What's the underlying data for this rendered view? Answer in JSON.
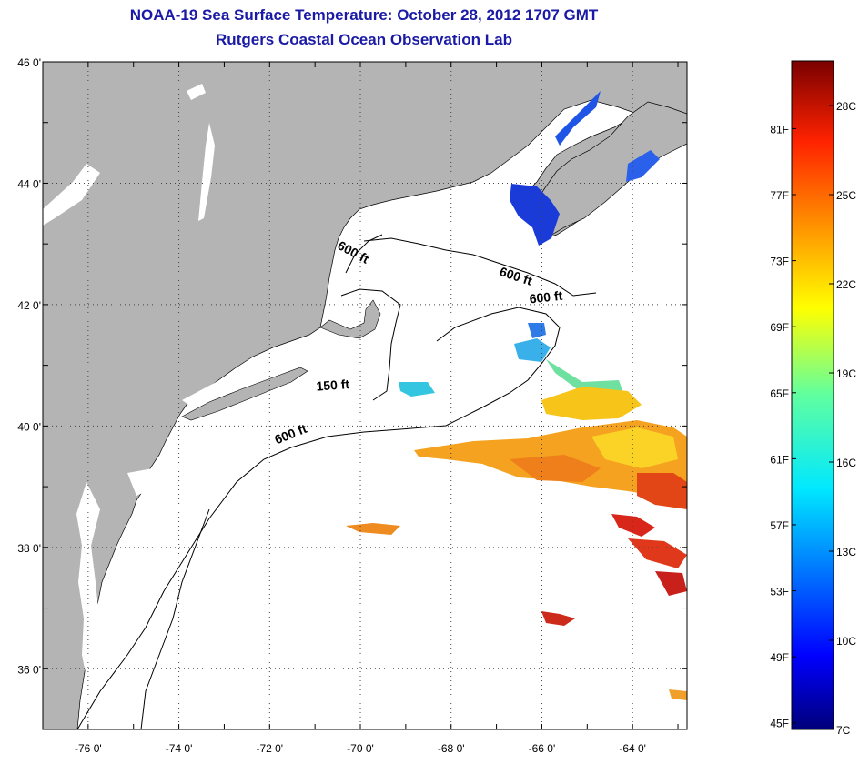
{
  "title": "NOAA-19 Sea Surface Temperature:  October 28, 2012 1707 GMT",
  "subtitle": "Rutgers Coastal Ocean Observation Lab",
  "map": {
    "lon_range": [
      -77,
      -62.8
    ],
    "lat_range": [
      35,
      46
    ],
    "lon_ticks": [
      {
        "value": -76,
        "label": "-76 0'"
      },
      {
        "value": -74,
        "label": "-74 0'"
      },
      {
        "value": -72,
        "label": "-72 0'"
      },
      {
        "value": -70,
        "label": "-70 0'"
      },
      {
        "value": -68,
        "label": "-68 0'"
      },
      {
        "value": -66,
        "label": "-66 0'"
      },
      {
        "value": -64,
        "label": "-64 0'"
      }
    ],
    "lat_ticks": [
      {
        "value": 46,
        "label": "46 0'"
      },
      {
        "value": 44,
        "label": "44 0'"
      },
      {
        "value": 42,
        "label": "42 0'"
      },
      {
        "value": 40,
        "label": "40 0'"
      },
      {
        "value": 38,
        "label": "38 0'"
      },
      {
        "value": 36,
        "label": "36 0'"
      }
    ],
    "contour_labels": [
      {
        "text": "600 ft",
        "lon": -70.2,
        "lat": 42.8,
        "rotate": 28
      },
      {
        "text": "600 ft",
        "lon": -66.6,
        "lat": 42.4,
        "rotate": 18
      },
      {
        "text": "600 ft",
        "lon": -65.9,
        "lat": 42.05,
        "rotate": -6
      },
      {
        "text": "150 ft",
        "lon": -70.6,
        "lat": 40.6,
        "rotate": -4
      },
      {
        "text": "600 ft",
        "lon": -71.5,
        "lat": 39.8,
        "rotate": -22
      }
    ],
    "land_color": "#b4b4b4",
    "grid": true
  },
  "colorbar": {
    "min_c": 7,
    "max_c": 29.5,
    "fahrenheit_labels": [
      "81F",
      "77F",
      "73F",
      "69F",
      "65F",
      "61F",
      "57F",
      "53F",
      "49F",
      "45F"
    ],
    "celsius_labels": [
      "28C",
      "25C",
      "22C",
      "19C",
      "16C",
      "13C",
      "10C",
      "7C"
    ]
  }
}
